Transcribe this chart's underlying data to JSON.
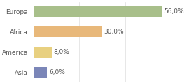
{
  "categories": [
    "Asia",
    "America",
    "Africa",
    "Europa"
  ],
  "values": [
    6.0,
    8.0,
    30.0,
    56.0
  ],
  "labels": [
    "6,0%",
    "8,0%",
    "30,0%",
    "56,0%"
  ],
  "bar_colors": [
    "#7b86b8",
    "#e8d080",
    "#e8b87a",
    "#a8bf8a"
  ],
  "background_color": "#ffffff",
  "xlim": [
    0,
    70
  ],
  "label_fontsize": 6.5,
  "tick_fontsize": 6.5,
  "bar_height": 0.55
}
